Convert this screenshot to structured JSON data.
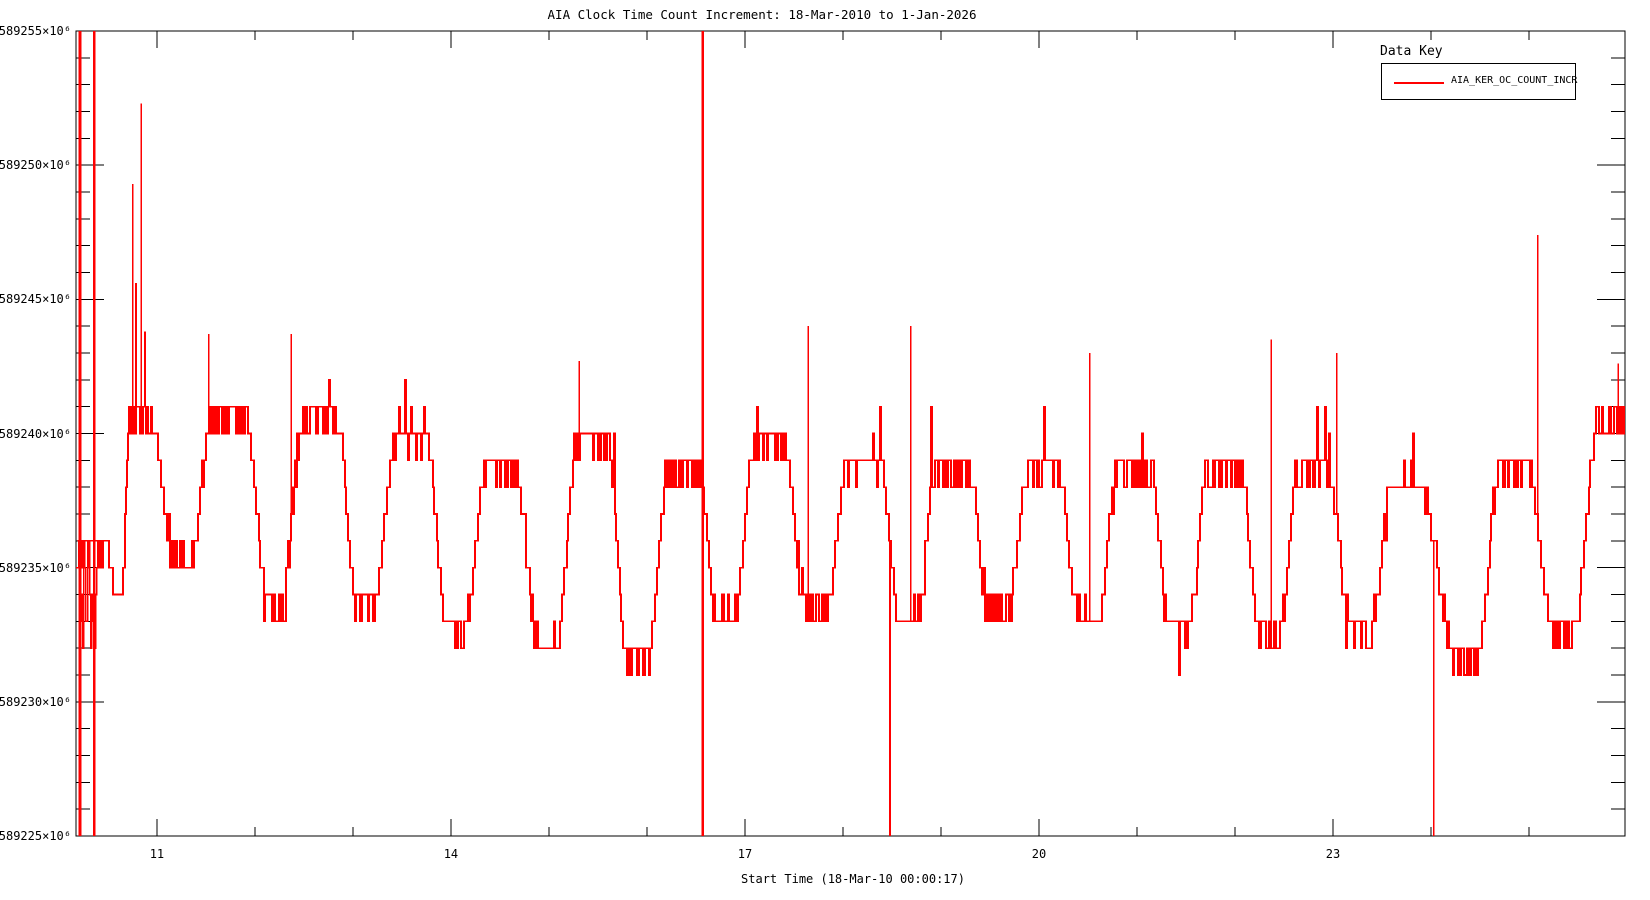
{
  "chart": {
    "title": "AIA Clock Time Count Increment: 18-Mar-2010 to 1-Jan-2026",
    "xlabel": "Start Time (18-Mar-10 00:00:17)",
    "legend": {
      "title": "Data Key",
      "entries": [
        {
          "label": "AIA_KER_OC_COUNT_INCR",
          "color": "#ff0000"
        }
      ]
    },
    "colors": {
      "series": "#ff0000",
      "axes": "#000000",
      "background": "#ffffff"
    }
  },
  "chart_data": {
    "type": "line",
    "title": "AIA Clock Time Count Increment: 18-Mar-2010 to 1-Jan-2026",
    "xlabel": "Start Time (18-Mar-10 00:00:17)",
    "ylabel": "",
    "x_range": [
      10.174,
      25.98
    ],
    "x_major_ticks": [
      11,
      14,
      17,
      20,
      23
    ],
    "x_minor_step": 1,
    "y_base": 589000,
    "y_unit": "1e6 counts",
    "y_range": [
      225,
      255
    ],
    "y_major_ticks": [
      {
        "v": 225,
        "label": "589225×10⁶"
      },
      {
        "v": 230,
        "label": "589230×10⁶"
      },
      {
        "v": 235,
        "label": "589235×10⁶"
      },
      {
        "v": 240,
        "label": "589240×10⁶"
      },
      {
        "v": 245,
        "label": "589245×10⁶"
      },
      {
        "v": 250,
        "label": "589250×10⁶"
      },
      {
        "v": 255,
        "label": "589255×10⁶"
      }
    ],
    "y_minor_step": 1,
    "grid": false,
    "legend_position": "top-right",
    "series": [
      {
        "name": "AIA_KER_OC_COUNT_INCR",
        "color": "#ff0000",
        "style": "quantized-step, values are integer multiples of 1e6, ~0.95-day oscillation",
        "envelope_waypoints_day_value": [
          [
            10.17,
            235.5
          ],
          [
            10.45,
            235.8
          ],
          [
            10.5,
            235.6
          ],
          [
            10.56,
            233.8
          ],
          [
            10.63,
            233.6
          ],
          [
            10.72,
            240.4
          ],
          [
            10.93,
            240.6
          ],
          [
            11.18,
            235.4
          ],
          [
            11.34,
            235.3
          ],
          [
            11.55,
            240.6
          ],
          [
            11.9,
            240.6
          ],
          [
            12.12,
            233.6
          ],
          [
            12.26,
            233.4
          ],
          [
            12.5,
            240.6
          ],
          [
            12.82,
            240.6
          ],
          [
            13.04,
            233.7
          ],
          [
            13.2,
            233.6
          ],
          [
            13.45,
            240.0
          ],
          [
            13.74,
            240.0
          ],
          [
            13.96,
            232.8
          ],
          [
            14.13,
            232.6
          ],
          [
            14.36,
            238.6
          ],
          [
            14.66,
            238.6
          ],
          [
            14.88,
            232.0
          ],
          [
            15.06,
            231.9
          ],
          [
            15.3,
            239.6
          ],
          [
            15.6,
            239.6
          ],
          [
            15.8,
            231.7
          ],
          [
            16.0,
            231.6
          ],
          [
            16.22,
            238.6
          ],
          [
            16.52,
            238.6
          ],
          [
            16.72,
            233.1
          ],
          [
            16.88,
            233.0
          ],
          [
            17.1,
            239.6
          ],
          [
            17.4,
            239.6
          ],
          [
            17.62,
            233.5
          ],
          [
            17.82,
            233.4
          ],
          [
            18.05,
            239.0
          ],
          [
            18.38,
            239.0
          ],
          [
            18.56,
            233.1
          ],
          [
            18.74,
            233.0
          ],
          [
            18.95,
            238.6
          ],
          [
            19.28,
            238.6
          ],
          [
            19.48,
            233.5
          ],
          [
            19.68,
            233.4
          ],
          [
            19.88,
            238.6
          ],
          [
            20.2,
            238.6
          ],
          [
            20.4,
            233.1
          ],
          [
            20.6,
            233.0
          ],
          [
            20.8,
            238.6
          ],
          [
            21.13,
            238.6
          ],
          [
            21.32,
            233.0
          ],
          [
            21.52,
            232.9
          ],
          [
            21.72,
            238.6
          ],
          [
            22.06,
            238.6
          ],
          [
            22.25,
            232.6
          ],
          [
            22.45,
            232.5
          ],
          [
            22.64,
            238.6
          ],
          [
            22.95,
            238.6
          ],
          [
            23.18,
            232.7
          ],
          [
            23.38,
            232.6
          ],
          [
            23.6,
            238.0
          ],
          [
            23.9,
            238.0
          ],
          [
            24.25,
            231.5
          ],
          [
            24.45,
            231.3
          ],
          [
            24.7,
            238.6
          ],
          [
            25.0,
            238.6
          ],
          [
            25.25,
            232.6
          ],
          [
            25.45,
            232.4
          ],
          [
            25.7,
            240.3
          ],
          [
            25.98,
            240.5
          ]
        ],
        "full_span_glitch_days": [
          10.215,
          10.36,
          16.57
        ],
        "chaos_regions": [
          {
            "d0": 10.19,
            "d1": 10.41,
            "lo": 231.8,
            "hi": 236.4
          }
        ],
        "down_spikes_day_value": [
          [
            18.48,
            225.0
          ],
          [
            24.03,
            225.0
          ]
        ],
        "up_spikes_day_value": [
          [
            10.755,
            249.3
          ],
          [
            10.786,
            245.6
          ],
          [
            10.838,
            252.3
          ],
          [
            10.878,
            243.8
          ],
          [
            11.53,
            243.7
          ],
          [
            12.37,
            243.7
          ],
          [
            15.31,
            242.7
          ],
          [
            17.645,
            244.0
          ],
          [
            18.69,
            244.0
          ],
          [
            20.52,
            243.0
          ],
          [
            22.37,
            243.5
          ],
          [
            23.04,
            243.0
          ],
          [
            25.09,
            247.4
          ],
          [
            25.91,
            242.6
          ]
        ]
      }
    ]
  }
}
